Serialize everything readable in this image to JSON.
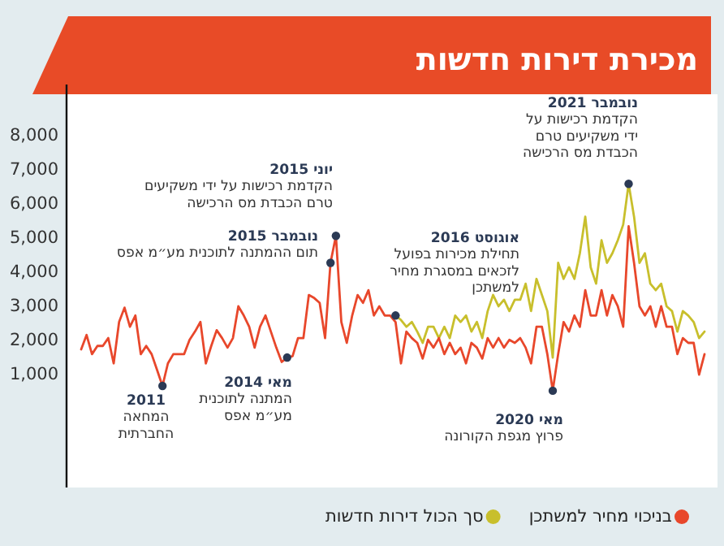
{
  "chart_data": {
    "type": "line",
    "title": "מכירת דירות חדשות",
    "categories": [
      null,
      null,
      null,
      null,
      null,
      null,
      null,
      null,
      null,
      null,
      null,
      null,
      null,
      null,
      null,
      null,
      null,
      null,
      null,
      null,
      null,
      null,
      null,
      null,
      null,
      null,
      null,
      null,
      null,
      null,
      null,
      null,
      null,
      null,
      null,
      null,
      null,
      null,
      null,
      null,
      null,
      null,
      null,
      null,
      null,
      null,
      null,
      null,
      null,
      null,
      null,
      null,
      null,
      null,
      null,
      null,
      null,
      null,
      null,
      null,
      null,
      null,
      null,
      null,
      null,
      null,
      null,
      null,
      null,
      null,
      null,
      null,
      null,
      null,
      null,
      null,
      null,
      null,
      null,
      null,
      null,
      null,
      null,
      null,
      null,
      null,
      null,
      null,
      null,
      null,
      null,
      null,
      null,
      null,
      null,
      null,
      null,
      null,
      null,
      null,
      null,
      null,
      null,
      null,
      null,
      null,
      null,
      null,
      null,
      null,
      null,
      null,
      null,
      null,
      null,
      null
    ],
    "series": [
      {
        "name": "סך הכול דירות חדשות",
        "color": "#c8bf2c",
        "values": [
          null,
          null,
          null,
          null,
          null,
          null,
          null,
          null,
          null,
          null,
          null,
          null,
          null,
          null,
          null,
          null,
          null,
          null,
          null,
          null,
          null,
          null,
          null,
          null,
          null,
          null,
          null,
          null,
          null,
          null,
          null,
          null,
          null,
          null,
          null,
          null,
          null,
          null,
          null,
          null,
          null,
          null,
          null,
          null,
          null,
          null,
          null,
          null,
          null,
          null,
          null,
          null,
          null,
          null,
          null,
          null,
          null,
          null,
          2730,
          2600,
          2400,
          2540,
          2260,
          1930,
          2400,
          2400,
          2070,
          2400,
          2070,
          2730,
          2540,
          2730,
          2260,
          2540,
          2070,
          2860,
          3330,
          3000,
          3190,
          2860,
          3190,
          3190,
          3660,
          2860,
          3800,
          3330,
          2860,
          1500,
          4270,
          3800,
          4140,
          3800,
          4550,
          5620,
          4140,
          3660,
          4930,
          4270,
          4550,
          4930,
          5390,
          6580,
          5620,
          4270,
          4550,
          3660,
          3470,
          3660,
          3000,
          2860,
          2260,
          2860,
          2730,
          2540,
          2070,
          2260
        ]
      },
      {
        "name": "בניכוי מחיר למשתכן",
        "color": "#e8472b",
        "values": [
          1740,
          2160,
          1600,
          1840,
          1840,
          2070,
          1330,
          2540,
          2960,
          2400,
          2730,
          1600,
          1840,
          1600,
          1140,
          670,
          1330,
          1600,
          1600,
          1600,
          2020,
          2260,
          2540,
          1330,
          1840,
          2300,
          2070,
          1790,
          2070,
          3000,
          2730,
          2400,
          1790,
          2400,
          2730,
          2260,
          1790,
          1370,
          1500,
          1540,
          2070,
          2070,
          3330,
          3240,
          3100,
          2070,
          4270,
          5060,
          2540,
          1930,
          2730,
          3330,
          3100,
          3470,
          2730,
          3000,
          2730,
          2730,
          2540,
          1330,
          2260,
          2070,
          1930,
          1470,
          2020,
          1790,
          2070,
          1600,
          1930,
          1600,
          1790,
          1330,
          1930,
          1790,
          1470,
          2070,
          1790,
          2070,
          1790,
          2020,
          1930,
          2070,
          1790,
          1330,
          2400,
          2400,
          1600,
          530,
          1600,
          2540,
          2260,
          2730,
          2400,
          3470,
          2730,
          2730,
          3470,
          2730,
          3330,
          3000,
          2400,
          5340,
          4270,
          3000,
          2730,
          3000,
          2400,
          3000,
          2400,
          2400,
          1600,
          2070,
          1930,
          1930,
          1000,
          1600
        ]
      }
    ],
    "ylim": [
      -2300,
      9200
    ],
    "yticks": [
      {
        "value": 1000,
        "label": "1,000"
      },
      {
        "value": 2000,
        "label": "2,000"
      },
      {
        "value": 3000,
        "label": "3,000"
      },
      {
        "value": 4000,
        "label": "4,000"
      },
      {
        "value": 5000,
        "label": "5,000"
      },
      {
        "value": 6000,
        "label": "6,000"
      },
      {
        "value": 7000,
        "label": "7,000"
      },
      {
        "value": 8000,
        "label": "8,000"
      }
    ],
    "legend": "bottom",
    "annotations": [
      "2011\nהמחאה\nהחברתית",
      "מאי 2014\nהמתנה לתוכנית\nמע״מ אפס",
      "נובמבר 2015\nתום ההמתנה לתוכנית מע״מ אפס",
      "יוני 2015\nהקדמת רכישות על ידי משקיעים\nטרם הכבדת מס הרכישה",
      "אוגוסט 2016\nתחילת מכירות בפועל\nלזכאים במסגרת מחיר\nלמשתכן",
      "מאי 2020\nפרוץ מגפת הקורונה",
      "נובמבר 2021\nהקדמת רכישות על\nידי משקיעים טרם\nהכבדת מס הרכישה"
    ]
  }
}
